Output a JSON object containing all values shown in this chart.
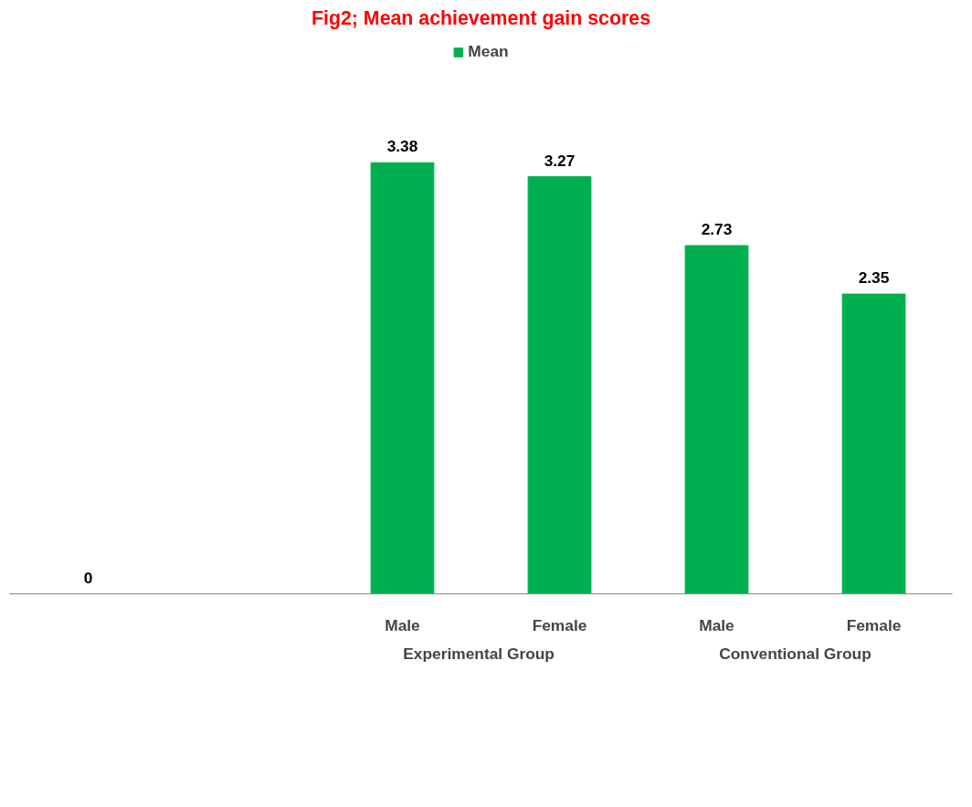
{
  "chart_data": {
    "type": "bar",
    "title": "Fig2; Mean achievement gain scores",
    "categories": [
      null,
      null,
      "Male",
      "Female",
      "Male",
      "Female"
    ],
    "series": [
      {
        "name": "Mean",
        "color": "#00b050",
        "values": [
          0,
          null,
          3.38,
          3.27,
          2.73,
          2.35
        ]
      }
    ],
    "annotations": [
      "Experimental  Group",
      "Conventional Group"
    ],
    "data_labels": true,
    "legend": "top",
    "grid": false,
    "tick_labels": "x"
  }
}
